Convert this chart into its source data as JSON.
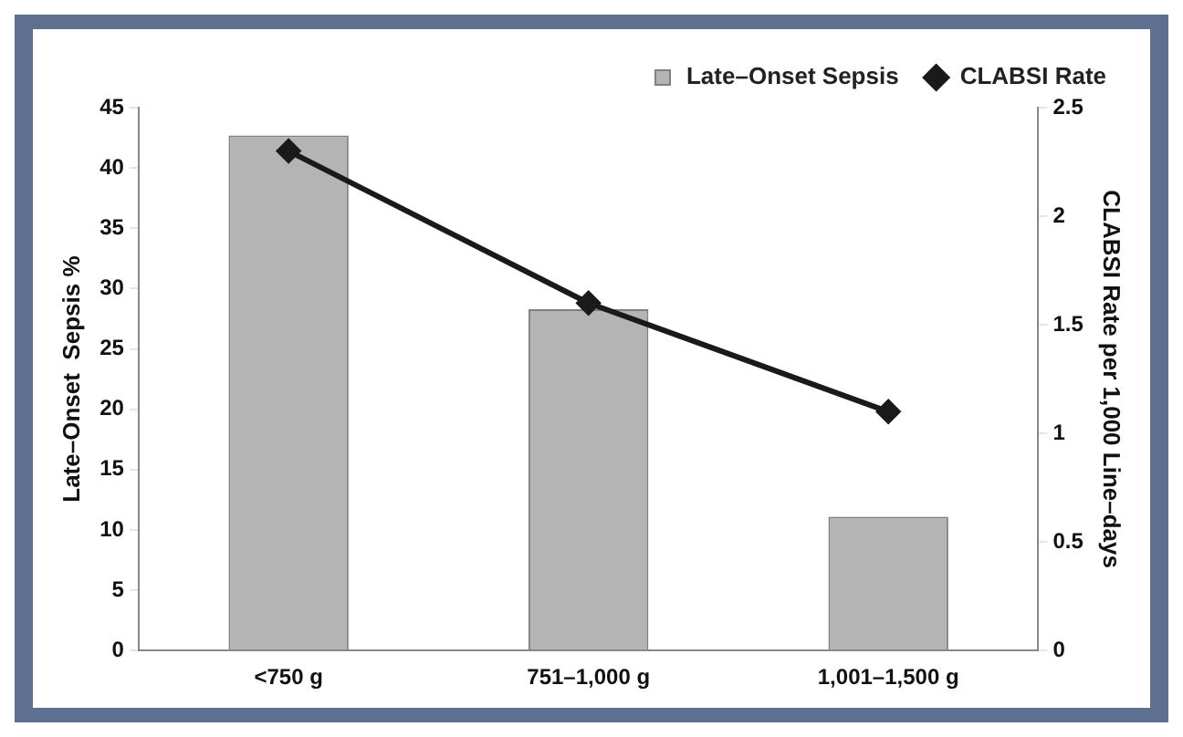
{
  "chart_data": {
    "type": "bar",
    "categories": [
      "<750 g",
      "751–1,000 g",
      "1,001–1,500 g"
    ],
    "series": [
      {
        "name": "Late–Onset Sepsis",
        "color": "#b4b4b4",
        "values": [
          42.7,
          28.3,
          11.1
        ]
      },
      {
        "name": "CLABSI Rate",
        "type": "line",
        "axis": "y2",
        "color": "#1a1a1a",
        "values": [
          2.3,
          1.6,
          1.1
        ]
      }
    ],
    "ylabel": "Late–Onset  Sepsis %",
    "y2label": "CLABSI Rate per 1,000 Line–days",
    "ylim": [
      0,
      45
    ],
    "yticks": [
      0,
      5,
      10,
      15,
      20,
      25,
      30,
      35,
      40,
      45
    ],
    "y2lim": [
      0,
      2.5
    ],
    "y2ticks": [
      0,
      0.5,
      1,
      1.5,
      2,
      2.5
    ],
    "marker": "diamond",
    "legend": "top right",
    "grid": false
  }
}
